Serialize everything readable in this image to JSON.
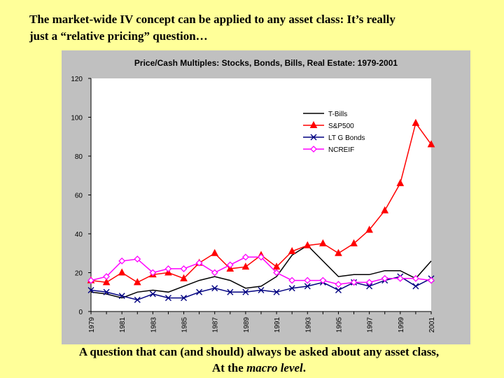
{
  "slide": {
    "title_line1": "The market-wide IV concept can be applied to any asset class: It’s really",
    "title_line2": "just a “relative pricing” question…",
    "footer_line1": "A question that can (and should) always be asked about any asset class,",
    "footer_line2_prefix": "At the ",
    "footer_line2_emph": "macro level",
    "footer_line2_suffix": "."
  },
  "chart_data": {
    "type": "line",
    "title": "Price/Cash Multiples: Stocks, Bonds, Bills, Real Estate: 1979-2001",
    "xlabel": "",
    "ylabel": "",
    "ylim": [
      0,
      120
    ],
    "yticks": [
      0,
      20,
      40,
      60,
      80,
      100,
      120
    ],
    "x": [
      1979,
      1980,
      1981,
      1982,
      1983,
      1984,
      1985,
      1986,
      1987,
      1988,
      1989,
      1990,
      1991,
      1992,
      1993,
      1994,
      1995,
      1996,
      1997,
      1998,
      1999,
      2000,
      2001
    ],
    "xtick_labels": [
      "1979",
      "1981",
      "1983",
      "1985",
      "1987",
      "1989",
      "1991",
      "1993",
      "1995",
      "1997",
      "1999",
      "2001"
    ],
    "legend_position": "upper-right inside plot",
    "grid": false,
    "series": [
      {
        "name": "T-Bills",
        "color": "#000000",
        "marker": "none",
        "values": [
          10,
          9,
          7,
          10,
          11,
          10,
          13,
          16,
          18,
          16,
          12,
          13,
          18,
          29,
          34,
          26,
          18,
          19,
          19,
          21,
          21,
          17,
          26
        ]
      },
      {
        "name": "S&P500",
        "color": "#ff0000",
        "marker": "triangle",
        "values": [
          16,
          15,
          20,
          15,
          19,
          20,
          17,
          25,
          30,
          22,
          23,
          29,
          23,
          31,
          34,
          35,
          30,
          35,
          42,
          52,
          66,
          97,
          86
        ]
      },
      {
        "name": "LT G Bonds",
        "color": "#000080",
        "marker": "x",
        "values": [
          11,
          10,
          8,
          6,
          9,
          7,
          7,
          10,
          12,
          10,
          10,
          11,
          10,
          12,
          13,
          15,
          11,
          15,
          13,
          16,
          18,
          13,
          17
        ]
      },
      {
        "name": "NCREIF",
        "color": "#ff00ff",
        "marker": "diamond",
        "values": [
          16,
          18,
          26,
          27,
          20,
          22,
          22,
          25,
          20,
          24,
          28,
          28,
          20,
          16,
          16,
          16,
          14,
          15,
          15,
          17,
          17,
          17,
          16
        ]
      }
    ]
  }
}
